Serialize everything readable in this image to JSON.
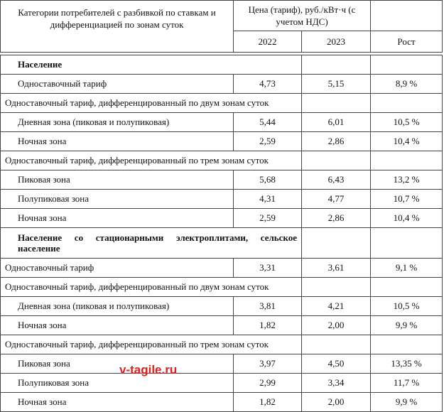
{
  "header": {
    "category": "Категории потребителей с разбивкой по ставкам и дифференциацией по зонам суток",
    "price": "Цена (тариф), руб./кВт·ч (с учетом НДС)",
    "year1": "2022",
    "year2": "2023",
    "growth": "Рост"
  },
  "rows": [
    {
      "type": "section",
      "label": "Население"
    },
    {
      "type": "data",
      "indent": true,
      "label": "Одноставочный тариф",
      "v2022": "4,73",
      "v2023": "5,15",
      "growth": "8,9 %"
    },
    {
      "type": "group",
      "label": "Одноставочный тариф, дифференцированный по двум зонам суток"
    },
    {
      "type": "data",
      "indent": true,
      "label": "Дневная зона (пиковая и полупиковая)",
      "v2022": "5,44",
      "v2023": "6,01",
      "growth": "10,5 %"
    },
    {
      "type": "data",
      "indent": true,
      "label": "Ночная зона",
      "v2022": "2,59",
      "v2023": "2,86",
      "growth": "10,4 %"
    },
    {
      "type": "group",
      "label": "Одноставочный тариф, дифференцированный по трем зонам суток"
    },
    {
      "type": "data",
      "indent": true,
      "label": "Пиковая зона",
      "v2022": "5,68",
      "v2023": "6,43",
      "growth": "13,2 %"
    },
    {
      "type": "data",
      "indent": true,
      "label": "Полупиковая зона",
      "v2022": "4,31",
      "v2023": "4,77",
      "growth": "10,7 %"
    },
    {
      "type": "data",
      "indent": true,
      "label": "Ночная зона",
      "v2022": "2,59",
      "v2023": "2,86",
      "growth": "10,4 %"
    },
    {
      "type": "section2",
      "label": "Население со стационарными электроплитами, сельское население"
    },
    {
      "type": "data",
      "indent": false,
      "label": "Одноставочный тариф",
      "v2022": "3,31",
      "v2023": "3,61",
      "growth": "9,1 %"
    },
    {
      "type": "group",
      "label": "Одноставочный тариф, дифференцированный по двум зонам суток"
    },
    {
      "type": "data",
      "indent": true,
      "label": "Дневная зона (пиковая и полупиковая)",
      "v2022": "3,81",
      "v2023": "4,21",
      "growth": "10,5 %"
    },
    {
      "type": "data",
      "indent": true,
      "label": "Ночная зона",
      "v2022": "1,82",
      "v2023": "2,00",
      "growth": "9,9 %"
    },
    {
      "type": "group",
      "label": "Одноставочный тариф, дифференцированный по трем зонам суток"
    },
    {
      "type": "data",
      "indent": true,
      "label": "Пиковая зона",
      "v2022": "3,97",
      "v2023": "4,50",
      "growth": "13,35 %"
    },
    {
      "type": "data",
      "indent": true,
      "label": "Полупиковая зона",
      "v2022": "2,99",
      "v2023": "3,34",
      "growth": "11,7 %"
    },
    {
      "type": "data",
      "indent": true,
      "label": "Ночная зона",
      "v2022": "1,82",
      "v2023": "2,00",
      "growth": "9,9 %"
    }
  ],
  "watermark": "v-tagile.ru",
  "colors": {
    "watermark": "#e0201a",
    "border": "#444444"
  }
}
